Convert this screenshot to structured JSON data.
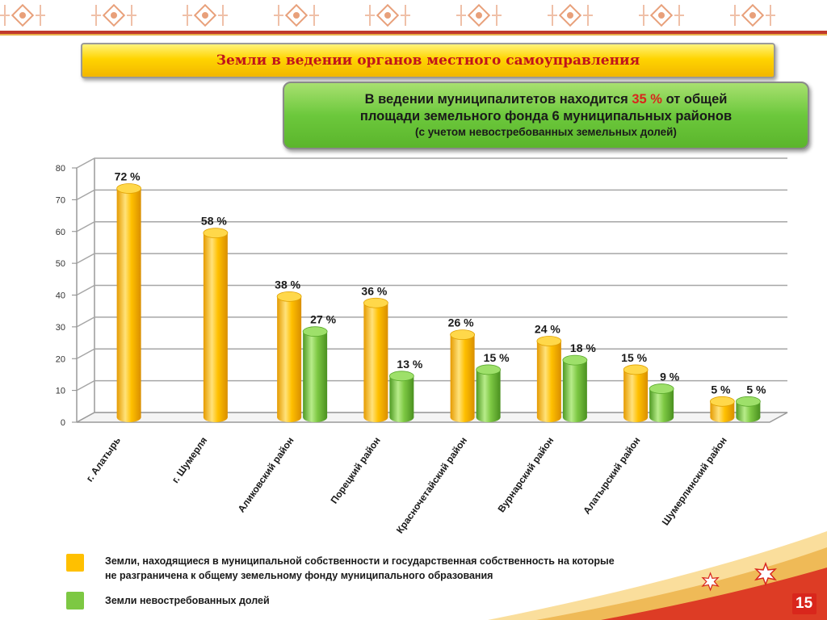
{
  "title": "Земли в ведении органов местного самоуправления",
  "info": {
    "line1_pre": "В ведении муниципалитетов находится",
    "line1_value": "35 %",
    "line1_post": "от общей",
    "line2": "площади земельного фонда 6 муниципальных районов",
    "line3": "(с учетом невостребованных земельных долей)"
  },
  "colors": {
    "series1": "#ffc000",
    "series2": "#7dc843",
    "accent": "#d9261c"
  },
  "chart_data": {
    "type": "bar",
    "categories": [
      "г. Алатырь",
      "г. Шумерля",
      "Аликовский район",
      "Порецкий район",
      "Красночетайский район",
      "Вурнарский район",
      "Алатырский район",
      "Шумерлинский район"
    ],
    "series": [
      {
        "values": [
          72,
          58,
          38,
          36,
          26,
          24,
          15,
          5
        ],
        "labels": [
          "72 %",
          "58 %",
          "38 %",
          "36 %",
          "26 %",
          "24 %",
          "15 %",
          "5 %"
        ]
      },
      {
        "values": [
          null,
          null,
          27,
          13,
          15,
          18,
          9,
          5
        ],
        "labels": [
          "",
          "",
          "27 %",
          "13 %",
          "15 %",
          "18 %",
          "9 %",
          "5 %"
        ]
      }
    ],
    "yticks": [
      "0",
      "10",
      "20",
      "30",
      "40",
      "50",
      "60",
      "70",
      "80"
    ],
    "ylim": [
      0,
      80
    ],
    "grid": true,
    "legend_position": "bottom-left"
  },
  "legend": {
    "item1_line1": "Земли, находящиеся в муниципальной собственности и государственная собственность на которые",
    "item1_line2": "не разграничена к общему земельному фонду муниципального образования",
    "item2": "Земли невостребованных долей"
  },
  "page_number": "15"
}
